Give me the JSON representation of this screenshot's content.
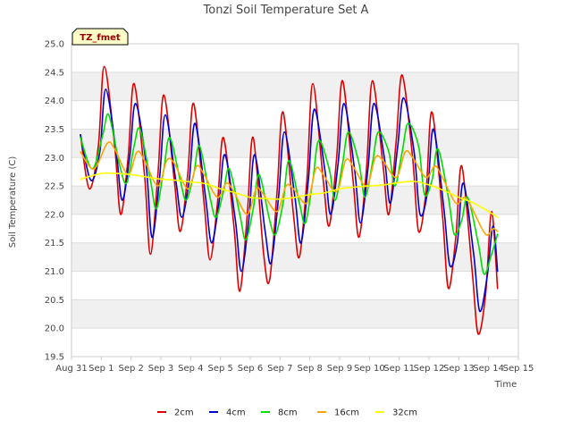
{
  "chart_data": {
    "type": "line",
    "title": "Tonzi Soil Temperature Set A",
    "xlabel": "Time",
    "ylabel": "Soil Temperature (C)",
    "site_label": "TZ_fmet",
    "ylim": [
      19.5,
      25.0
    ],
    "xlim": [
      0,
      15
    ],
    "y_ticks": [
      19.5,
      20.0,
      20.5,
      21.0,
      21.5,
      22.0,
      22.5,
      23.0,
      23.5,
      24.0,
      24.5,
      25.0
    ],
    "y_tick_labels": [
      "19.5",
      "20.0",
      "20.5",
      "21.0",
      "21.5",
      "22.0",
      "22.5",
      "23.0",
      "23.5",
      "24.0",
      "24.5",
      "25.0"
    ],
    "x_ticks": [
      0,
      1,
      2,
      3,
      4,
      5,
      6,
      7,
      8,
      9,
      10,
      11,
      12,
      13,
      14,
      15
    ],
    "x_tick_labels": [
      "Aug 31",
      "Sep 1",
      "Sep 2",
      "Sep 3",
      "Sep 4",
      "Sep 5",
      "Sep 6",
      "Sep 7",
      "Sep 8",
      "Sep 9",
      "Sep 10",
      "Sep 11",
      "Sep 12",
      "Sep 13",
      "Sep 14",
      "Sep 15"
    ],
    "grid": "horizontal bands",
    "legend_position": "bottom",
    "series": [
      {
        "name": "2cm",
        "color": "#dd0000",
        "x": [
          0.3,
          0.6,
          0.9,
          1.1,
          1.45,
          1.65,
          1.9,
          2.1,
          2.45,
          2.65,
          2.9,
          3.1,
          3.45,
          3.65,
          3.9,
          4.1,
          4.45,
          4.65,
          4.9,
          5.1,
          5.45,
          5.65,
          5.9,
          6.1,
          6.45,
          6.65,
          6.9,
          7.1,
          7.45,
          7.65,
          7.9,
          8.1,
          8.45,
          8.65,
          8.9,
          9.1,
          9.45,
          9.65,
          9.9,
          10.1,
          10.45,
          10.65,
          10.9,
          11.1,
          11.45,
          11.65,
          11.9,
          12.1,
          12.45,
          12.65,
          12.9,
          13.1,
          13.45,
          13.65,
          13.9,
          14.1,
          14.3
        ],
        "y": [
          23.4,
          22.45,
          23.2,
          24.6,
          23.2,
          22.0,
          23.0,
          24.3,
          22.7,
          21.3,
          22.7,
          24.1,
          22.6,
          21.7,
          22.7,
          23.95,
          22.2,
          21.2,
          22.2,
          23.35,
          21.8,
          20.65,
          22.0,
          23.35,
          21.3,
          20.85,
          22.4,
          23.8,
          22.0,
          21.25,
          22.6,
          24.3,
          22.6,
          21.8,
          23.0,
          24.35,
          22.6,
          21.6,
          22.8,
          24.35,
          22.9,
          22.0,
          23.3,
          24.45,
          23.0,
          21.7,
          22.4,
          23.8,
          22.0,
          20.7,
          21.6,
          22.85,
          21.0,
          19.9,
          20.6,
          22.05,
          20.7
        ]
      },
      {
        "name": "4cm",
        "color": "#0000cc",
        "x": [
          0.3,
          0.65,
          0.95,
          1.15,
          1.5,
          1.7,
          1.95,
          2.15,
          2.5,
          2.7,
          2.95,
          3.15,
          3.5,
          3.7,
          3.95,
          4.15,
          4.5,
          4.7,
          4.95,
          5.15,
          5.5,
          5.7,
          5.95,
          6.15,
          6.5,
          6.7,
          6.95,
          7.15,
          7.5,
          7.7,
          7.95,
          8.15,
          8.5,
          8.7,
          8.95,
          9.15,
          9.5,
          9.7,
          9.95,
          10.15,
          10.5,
          10.7,
          10.95,
          11.15,
          11.5,
          11.7,
          11.95,
          12.15,
          12.5,
          12.7,
          12.95,
          13.15,
          13.5,
          13.7,
          13.95,
          14.15,
          14.3
        ],
        "y": [
          23.4,
          22.6,
          23.1,
          24.2,
          23.1,
          22.25,
          23.0,
          23.95,
          22.9,
          21.6,
          22.6,
          23.75,
          22.6,
          21.95,
          22.6,
          23.6,
          22.3,
          21.5,
          22.2,
          23.05,
          21.9,
          21.0,
          21.9,
          23.05,
          21.7,
          21.15,
          22.3,
          23.45,
          22.3,
          21.5,
          22.6,
          23.85,
          22.8,
          22.0,
          22.9,
          23.95,
          22.8,
          21.85,
          22.8,
          23.95,
          23.0,
          22.2,
          23.2,
          24.05,
          23.1,
          22.0,
          22.4,
          23.5,
          22.1,
          21.1,
          21.5,
          22.55,
          21.3,
          20.3,
          20.9,
          21.8,
          21.0
        ]
      },
      {
        "name": "8cm",
        "color": "#00dd00",
        "x": [
          0.3,
          0.7,
          1.05,
          1.25,
          1.6,
          1.85,
          2.1,
          2.3,
          2.65,
          2.85,
          3.1,
          3.3,
          3.65,
          3.85,
          4.1,
          4.3,
          4.65,
          4.85,
          5.1,
          5.3,
          5.65,
          5.85,
          6.1,
          6.3,
          6.65,
          6.85,
          7.1,
          7.3,
          7.65,
          7.85,
          8.1,
          8.3,
          8.65,
          8.85,
          9.1,
          9.3,
          9.65,
          9.85,
          10.1,
          10.3,
          10.65,
          10.85,
          11.1,
          11.3,
          11.65,
          11.85,
          12.1,
          12.3,
          12.65,
          12.85,
          13.1,
          13.3,
          13.65,
          13.85,
          14.1,
          14.3
        ],
        "y": [
          23.35,
          22.8,
          23.4,
          23.75,
          22.9,
          22.55,
          23.2,
          23.5,
          22.6,
          22.1,
          22.8,
          23.35,
          22.6,
          22.25,
          22.7,
          23.2,
          22.3,
          21.95,
          22.4,
          22.8,
          22.0,
          21.55,
          22.1,
          22.7,
          21.9,
          21.65,
          22.2,
          22.95,
          22.2,
          21.85,
          22.6,
          23.3,
          22.8,
          22.25,
          22.9,
          23.45,
          22.9,
          22.3,
          22.9,
          23.45,
          23.1,
          22.5,
          23.1,
          23.6,
          23.2,
          22.35,
          22.6,
          23.15,
          22.3,
          21.65,
          21.9,
          22.3,
          21.5,
          20.95,
          21.3,
          21.65
        ]
      },
      {
        "name": "16cm",
        "color": "#ffa500",
        "x": [
          0.3,
          0.75,
          1.2,
          1.45,
          1.9,
          2.2,
          2.45,
          2.9,
          3.2,
          3.45,
          3.9,
          4.2,
          4.45,
          4.9,
          5.2,
          5.45,
          5.9,
          6.2,
          6.45,
          6.9,
          7.2,
          7.45,
          7.9,
          8.2,
          8.45,
          8.9,
          9.2,
          9.45,
          9.9,
          10.2,
          10.45,
          10.9,
          11.2,
          11.45,
          11.9,
          12.2,
          12.45,
          12.9,
          13.2,
          13.45,
          13.9,
          14.15,
          14.3
        ],
        "y": [
          23.1,
          22.8,
          23.25,
          23.15,
          22.7,
          23.1,
          22.95,
          22.5,
          22.95,
          22.9,
          22.45,
          22.85,
          22.7,
          22.3,
          22.55,
          22.4,
          22.0,
          22.45,
          22.35,
          22.05,
          22.5,
          22.45,
          22.2,
          22.8,
          22.7,
          22.4,
          22.95,
          22.85,
          22.5,
          23.0,
          22.95,
          22.65,
          23.1,
          23.0,
          22.65,
          22.85,
          22.65,
          22.2,
          22.3,
          22.1,
          21.65,
          21.75,
          21.7
        ]
      },
      {
        "name": "32cm",
        "color": "#ffff00",
        "x": [
          0.3,
          1.0,
          1.5,
          2.0,
          2.5,
          3.0,
          3.5,
          4.0,
          4.5,
          5.0,
          5.5,
          6.0,
          6.5,
          7.0,
          7.5,
          8.0,
          8.5,
          9.0,
          9.5,
          10.0,
          10.5,
          11.0,
          11.5,
          12.0,
          12.5,
          13.0,
          13.5,
          14.0,
          14.3
        ],
        "y": [
          22.62,
          22.72,
          22.72,
          22.7,
          22.66,
          22.62,
          22.6,
          22.57,
          22.54,
          22.45,
          22.38,
          22.3,
          22.28,
          22.27,
          22.3,
          22.35,
          22.38,
          22.45,
          22.48,
          22.5,
          22.52,
          22.56,
          22.58,
          22.52,
          22.42,
          22.3,
          22.2,
          22.05,
          21.95
        ]
      }
    ]
  }
}
